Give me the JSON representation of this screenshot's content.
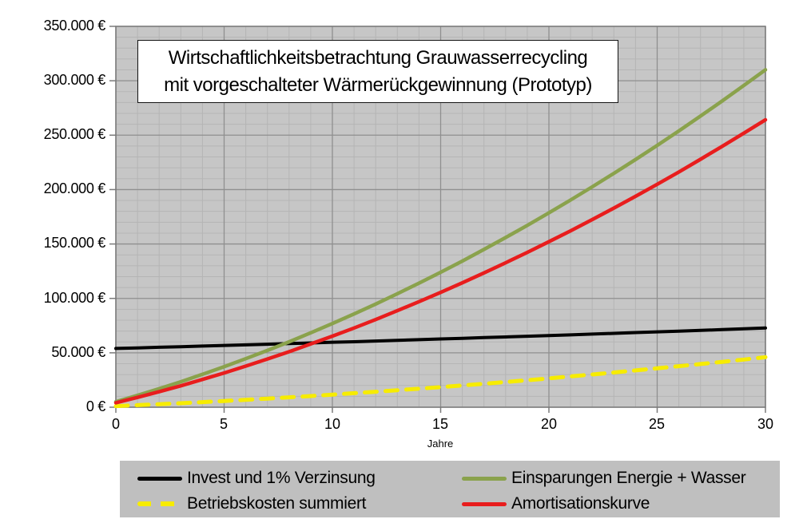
{
  "title": {
    "line1": "Wirtschaftlichkeitsbetrachtung Grauwasserrecycling",
    "line2": "mit vorgeschalteter Wärmerückgewinnung (Prototyp)"
  },
  "axes": {
    "y": {
      "labels": [
        "350.000 €",
        "300.000 €",
        "250.000 €",
        "200.000 €",
        "150.000 €",
        "100.000 €",
        "50.000 €",
        "0 €"
      ]
    },
    "x": {
      "labels": [
        "0",
        "5",
        "10",
        "15",
        "20",
        "25",
        "30"
      ],
      "title": "Jahre"
    }
  },
  "legend": {
    "items": [
      {
        "label": "Invest und 1% Verzinsung",
        "color": "#000000",
        "style": "solid"
      },
      {
        "label": "Betriebskosten summiert",
        "color": "#F7EC00",
        "style": "dashed"
      },
      {
        "label": "Einsparungen Energie + Wasser",
        "color": "#8AA24C",
        "style": "solid"
      },
      {
        "label": "Amortisationskurve",
        "color": "#E81D1D",
        "style": "solid"
      }
    ]
  },
  "chart_data": {
    "type": "line",
    "title": "Wirtschaftlichkeitsbetrachtung Grauwasserrecycling mit vorgeschalteter Wärmerückgewinnung (Prototyp)",
    "xlabel": "Jahre",
    "ylabel": "€",
    "xlim": [
      0,
      30
    ],
    "ylim": [
      0,
      350000
    ],
    "grid": {
      "minor_x": 1,
      "major_x": 5,
      "minor_y": 10000,
      "major_y": 50000
    },
    "style": {
      "plot_bg": "#C6C6C6",
      "grid_minor": "#B5B5B5",
      "grid_major": "#8F8F8F",
      "axis": "#7A7A7A"
    },
    "x": [
      0,
      1,
      2,
      3,
      4,
      5,
      6,
      7,
      8,
      9,
      10,
      11,
      12,
      13,
      14,
      15,
      16,
      17,
      18,
      19,
      20,
      21,
      22,
      23,
      24,
      25,
      26,
      27,
      28,
      29,
      30
    ],
    "series": [
      {
        "name": "Invest und 1% Verzinsung",
        "color": "#000000",
        "width": 4,
        "dash": null,
        "values": [
          54000,
          54500,
          55100,
          55600,
          56200,
          56800,
          57300,
          57900,
          58500,
          59100,
          59700,
          60200,
          60800,
          61500,
          62100,
          62700,
          63300,
          64000,
          64600,
          65200,
          65900,
          66500,
          67200,
          67900,
          68600,
          69300,
          69900,
          70600,
          71300,
          72100,
          72800
        ]
      },
      {
        "name": "Betriebskosten summiert",
        "color": "#F7EC00",
        "width": 5,
        "dash": "15 11",
        "values": [
          1000,
          1900,
          2800,
          3700,
          4700,
          5700,
          6800,
          7900,
          9100,
          10300,
          11600,
          12900,
          14200,
          15600,
          17000,
          18500,
          20000,
          21600,
          23200,
          24800,
          26500,
          28300,
          30100,
          31900,
          33800,
          35700,
          37700,
          39700,
          41700,
          43800,
          46000
        ]
      },
      {
        "name": "Einsparungen Energie + Wasser",
        "color": "#8AA24C",
        "width": 4.5,
        "dash": null,
        "values": [
          5000,
          10900,
          17000,
          23400,
          30200,
          37200,
          44600,
          52200,
          60100,
          68400,
          76900,
          85700,
          94800,
          104300,
          114000,
          124000,
          134300,
          145000,
          155900,
          167100,
          178600,
          190400,
          202500,
          214900,
          227600,
          240600,
          253900,
          267500,
          281400,
          295600,
          310100
        ]
      },
      {
        "name": "Amortisationskurve",
        "color": "#E81D1D",
        "width": 4.5,
        "dash": null,
        "values": [
          4000,
          9000,
          14200,
          19700,
          25500,
          31500,
          37800,
          44300,
          51000,
          58100,
          65300,
          72800,
          80600,
          88700,
          97000,
          105500,
          114300,
          123400,
          132700,
          142300,
          152100,
          162100,
          172400,
          183000,
          193800,
          204900,
          216200,
          227800,
          239700,
          251800,
          264100
        ]
      }
    ]
  }
}
